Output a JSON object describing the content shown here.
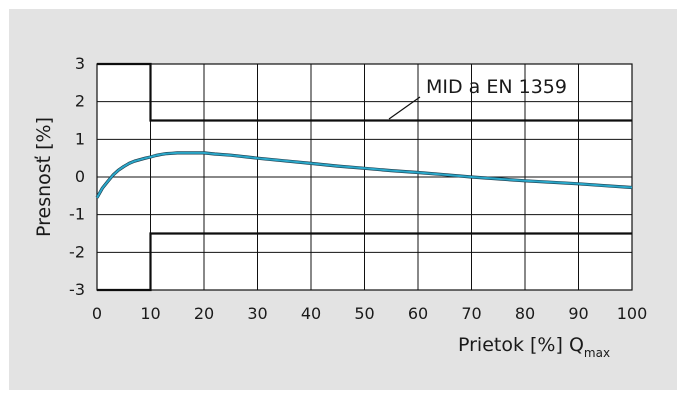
{
  "chart_data": {
    "type": "line",
    "title": "",
    "xlabel": "Prietok [%] Q",
    "xlabel_sub": "max",
    "ylabel": "Presnosť [%]",
    "xlim": [
      0,
      100
    ],
    "ylim": [
      -3,
      3
    ],
    "x_ticks": [
      "0",
      "10",
      "20",
      "30",
      "40",
      "50",
      "60",
      "70",
      "80",
      "90",
      "100"
    ],
    "y_ticks": [
      "3",
      "2",
      "1",
      "0",
      "-1",
      "-2",
      "-3"
    ],
    "grid": true,
    "annotation": "MID a EN 1359",
    "series": [
      {
        "color": "#2aa7c9",
        "points": [
          [
            0,
            -0.55
          ],
          [
            1,
            -0.3
          ],
          [
            2,
            -0.12
          ],
          [
            3,
            0.05
          ],
          [
            4,
            0.18
          ],
          [
            5,
            0.28
          ],
          [
            6,
            0.36
          ],
          [
            7,
            0.42
          ],
          [
            8,
            0.46
          ],
          [
            9,
            0.5
          ],
          [
            10,
            0.53
          ],
          [
            11,
            0.57
          ],
          [
            12,
            0.6
          ],
          [
            13,
            0.62
          ],
          [
            14,
            0.63
          ],
          [
            15,
            0.64
          ],
          [
            17,
            0.64
          ],
          [
            20,
            0.64
          ],
          [
            22,
            0.61
          ],
          [
            25,
            0.58
          ],
          [
            30,
            0.5
          ],
          [
            35,
            0.43
          ],
          [
            40,
            0.36
          ],
          [
            45,
            0.29
          ],
          [
            50,
            0.23
          ],
          [
            55,
            0.17
          ],
          [
            60,
            0.12
          ],
          [
            65,
            0.06
          ],
          [
            70,
            0.0
          ],
          [
            75,
            -0.05
          ],
          [
            80,
            -0.1
          ],
          [
            85,
            -0.14
          ],
          [
            90,
            -0.18
          ],
          [
            95,
            -0.23
          ],
          [
            100,
            -0.28
          ]
        ]
      }
    ],
    "limits": [
      {
        "name": "upper-limit",
        "points": [
          [
            0,
            3
          ],
          [
            10,
            3
          ],
          [
            10,
            1.5
          ],
          [
            100,
            1.5
          ]
        ]
      },
      {
        "name": "lower-limit",
        "points": [
          [
            0,
            -3
          ],
          [
            10,
            -3
          ],
          [
            10,
            -1.5
          ],
          [
            100,
            -1.5
          ]
        ]
      }
    ]
  }
}
